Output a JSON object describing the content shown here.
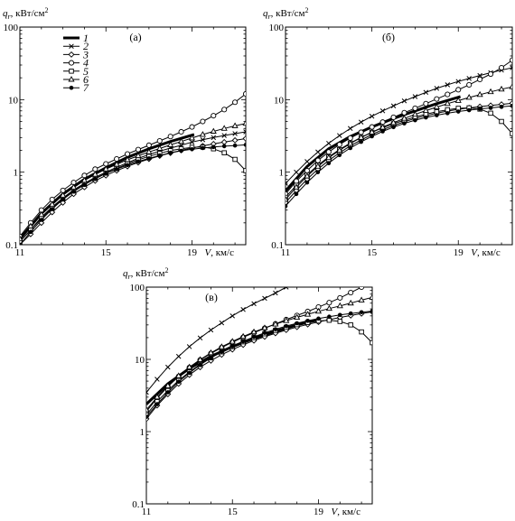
{
  "chart_data": [
    {
      "type": "line",
      "title": "(а)",
      "ylabel": "q_r, кВт/см²",
      "xlabel": "V, км/с",
      "xlim": [
        11,
        21.5
      ],
      "ylim": [
        0.1,
        100
      ],
      "yscale": "log",
      "x_ticks": [
        "11",
        "15",
        "19"
      ],
      "y_ticks": [
        "0.1",
        "1",
        "10",
        "100"
      ],
      "legend": {
        "placement": "top-left",
        "entries": [
          "1",
          "2",
          "3",
          "4",
          "5",
          "6",
          "7"
        ]
      },
      "series": [
        {
          "name": "1",
          "marker": "none",
          "width": 3,
          "x": [
            11,
            12,
            13,
            14,
            15,
            16,
            17,
            18,
            19.1
          ],
          "y": [
            0.12,
            0.27,
            0.5,
            0.8,
            1.15,
            1.6,
            2.1,
            2.65,
            3.3
          ]
        },
        {
          "name": "2",
          "marker": "x",
          "x": [
            11,
            11.5,
            12,
            12.5,
            13,
            13.5,
            14,
            14.5,
            15,
            15.5,
            16,
            16.5,
            17,
            17.5,
            18,
            18.5,
            19,
            19.5,
            20,
            20.5,
            21,
            21.5
          ],
          "y": [
            0.11,
            0.16,
            0.24,
            0.33,
            0.44,
            0.57,
            0.7,
            0.85,
            1.0,
            1.17,
            1.35,
            1.55,
            1.75,
            1.95,
            2.15,
            2.35,
            2.6,
            2.8,
            3.0,
            3.2,
            3.4,
            3.6
          ]
        },
        {
          "name": "3",
          "marker": "diamond",
          "x": [
            11,
            11.5,
            12,
            12.5,
            13,
            13.5,
            14,
            14.5,
            15,
            15.5,
            16,
            16.5,
            17,
            17.5,
            18,
            18.5,
            19,
            19.5,
            20,
            20.5,
            21,
            21.5
          ],
          "y": [
            0.1,
            0.14,
            0.2,
            0.28,
            0.38,
            0.5,
            0.62,
            0.76,
            0.9,
            1.05,
            1.2,
            1.36,
            1.52,
            1.68,
            1.84,
            2.0,
            2.15,
            2.3,
            2.45,
            2.6,
            2.75,
            2.9
          ]
        },
        {
          "name": "4",
          "marker": "circle",
          "x": [
            11,
            11.5,
            12,
            12.5,
            13,
            13.5,
            14,
            14.5,
            15,
            15.5,
            16,
            16.5,
            17,
            17.5,
            18,
            18.5,
            19,
            19.5,
            20,
            20.5,
            21,
            21.5
          ],
          "y": [
            0.13,
            0.2,
            0.3,
            0.42,
            0.56,
            0.72,
            0.9,
            1.1,
            1.3,
            1.52,
            1.78,
            2.05,
            2.35,
            2.7,
            3.1,
            3.6,
            4.2,
            5.0,
            6.0,
            7.3,
            9.2,
            12.0
          ]
        },
        {
          "name": "5",
          "marker": "square",
          "x": [
            11,
            11.5,
            12,
            12.5,
            13,
            13.5,
            14,
            14.5,
            15,
            15.5,
            16,
            16.5,
            17,
            17.5,
            18,
            18.5,
            19,
            19.5,
            20,
            20.5,
            21,
            21.5
          ],
          "y": [
            0.11,
            0.16,
            0.23,
            0.32,
            0.43,
            0.55,
            0.68,
            0.82,
            0.97,
            1.12,
            1.3,
            1.48,
            1.65,
            1.82,
            1.98,
            2.1,
            2.2,
            2.22,
            2.1,
            1.85,
            1.5,
            1.05
          ]
        },
        {
          "name": "6",
          "marker": "triangle",
          "x": [
            11,
            11.5,
            12,
            12.5,
            13,
            13.5,
            14,
            14.5,
            15,
            15.5,
            16,
            16.5,
            17,
            17.5,
            18,
            18.5,
            19,
            19.5,
            20,
            20.5,
            21,
            21.5
          ],
          "y": [
            0.12,
            0.18,
            0.26,
            0.36,
            0.48,
            0.62,
            0.77,
            0.93,
            1.1,
            1.28,
            1.48,
            1.68,
            1.9,
            2.12,
            2.38,
            2.65,
            2.95,
            3.3,
            3.65,
            4.0,
            4.35,
            4.7
          ]
        },
        {
          "name": "7",
          "marker": "dot",
          "x": [
            11,
            11.5,
            12,
            12.5,
            13,
            13.5,
            14,
            14.5,
            15,
            15.5,
            16,
            16.5,
            17,
            17.5,
            18,
            18.5,
            19,
            19.5,
            20,
            20.5,
            21,
            21.5
          ],
          "y": [
            0.1,
            0.15,
            0.22,
            0.31,
            0.42,
            0.54,
            0.67,
            0.81,
            0.96,
            1.1,
            1.25,
            1.4,
            1.55,
            1.7,
            1.85,
            1.97,
            2.07,
            2.15,
            2.22,
            2.28,
            2.33,
            2.38
          ]
        }
      ]
    },
    {
      "type": "line",
      "title": "(б)",
      "ylabel": "q_r, кВт/см²",
      "xlabel": "V, км/с",
      "xlim": [
        11,
        21.5
      ],
      "ylim": [
        0.1,
        100
      ],
      "yscale": "log",
      "x_ticks": [
        "11",
        "15",
        "19"
      ],
      "y_ticks": [
        "0.1",
        "1",
        "10",
        "100"
      ],
      "series": [
        {
          "name": "1",
          "marker": "none",
          "width": 3,
          "x": [
            11,
            12,
            13,
            14,
            15,
            16,
            17,
            18,
            19.1
          ],
          "y": [
            0.55,
            1.2,
            2.1,
            3.1,
            4.2,
            5.5,
            7.0,
            8.8,
            11.0
          ]
        },
        {
          "name": "2",
          "marker": "x",
          "x": [
            11,
            11.5,
            12,
            12.5,
            13,
            13.5,
            14,
            14.5,
            15,
            15.5,
            16,
            16.5,
            17,
            17.5,
            18,
            18.5,
            19,
            19.5,
            20,
            20.5,
            21,
            21.5
          ],
          "y": [
            0.7,
            1.0,
            1.4,
            1.9,
            2.5,
            3.2,
            4.0,
            4.9,
            5.9,
            7.0,
            8.2,
            9.6,
            11.0,
            12.6,
            14.3,
            16.0,
            17.8,
            19.6,
            21.5,
            23.5,
            25.5,
            27.5
          ]
        },
        {
          "name": "3",
          "marker": "diamond",
          "x": [
            11,
            11.5,
            12,
            12.5,
            13,
            13.5,
            14,
            14.5,
            15,
            15.5,
            16,
            16.5,
            17,
            17.5,
            18,
            18.5,
            19,
            19.5,
            20,
            20.5,
            21,
            21.5
          ],
          "y": [
            0.38,
            0.56,
            0.8,
            1.1,
            1.45,
            1.85,
            2.3,
            2.78,
            3.3,
            3.85,
            4.4,
            4.95,
            5.5,
            6.0,
            6.5,
            6.95,
            7.35,
            7.7,
            8.0,
            8.3,
            8.6,
            8.9
          ]
        },
        {
          "name": "4",
          "marker": "circle",
          "x": [
            11,
            11.5,
            12,
            12.5,
            13,
            13.5,
            14,
            14.5,
            15,
            15.5,
            16,
            16.5,
            17,
            17.5,
            18,
            18.5,
            19,
            19.5,
            20,
            20.5,
            21,
            21.5
          ],
          "y": [
            0.5,
            0.75,
            1.05,
            1.45,
            1.9,
            2.4,
            2.95,
            3.55,
            4.2,
            4.9,
            5.7,
            6.6,
            7.6,
            8.8,
            10.2,
            11.8,
            13.7,
            16.0,
            19.0,
            22.5,
            27.5,
            35.0
          ]
        },
        {
          "name": "5",
          "marker": "square",
          "x": [
            11,
            11.5,
            12,
            12.5,
            13,
            13.5,
            14,
            14.5,
            15,
            15.5,
            16,
            16.5,
            17,
            17.5,
            18,
            18.5,
            19,
            19.5,
            20,
            20.5,
            21,
            21.5
          ],
          "y": [
            0.45,
            0.66,
            0.92,
            1.25,
            1.62,
            2.05,
            2.52,
            3.02,
            3.55,
            4.1,
            4.65,
            5.2,
            5.75,
            6.3,
            6.8,
            7.25,
            7.6,
            7.7,
            7.4,
            6.5,
            5.0,
            3.4
          ]
        },
        {
          "name": "6",
          "marker": "triangle",
          "x": [
            11,
            11.5,
            12,
            12.5,
            13,
            13.5,
            14,
            14.5,
            15,
            15.5,
            16,
            16.5,
            17,
            17.5,
            18,
            18.5,
            19,
            19.5,
            20,
            20.5,
            21,
            21.5
          ],
          "y": [
            0.42,
            0.62,
            0.88,
            1.2,
            1.58,
            2.0,
            2.48,
            3.0,
            3.55,
            4.15,
            4.8,
            5.5,
            6.25,
            7.05,
            7.9,
            8.8,
            9.7,
            10.7,
            11.7,
            12.8,
            13.9,
            15.0
          ]
        },
        {
          "name": "7",
          "marker": "dot",
          "x": [
            11,
            11.5,
            12,
            12.5,
            13,
            13.5,
            14,
            14.5,
            15,
            15.5,
            16,
            16.5,
            17,
            17.5,
            18,
            18.5,
            19,
            19.5,
            20,
            20.5,
            21,
            21.5
          ],
          "y": [
            0.34,
            0.5,
            0.72,
            1.0,
            1.33,
            1.72,
            2.15,
            2.62,
            3.12,
            3.65,
            4.18,
            4.7,
            5.2,
            5.67,
            6.1,
            6.5,
            6.85,
            7.15,
            7.45,
            7.7,
            7.95,
            8.2
          ]
        }
      ]
    },
    {
      "type": "line",
      "title": "(в)",
      "ylabel": "q_r, кВт/см²",
      "xlabel": "V, км/с",
      "xlim": [
        11,
        21.5
      ],
      "ylim": [
        0.1,
        100
      ],
      "yscale": "log",
      "x_ticks": [
        "11",
        "15",
        "19"
      ],
      "y_ticks": [
        "0.1",
        "1",
        "10",
        "100"
      ],
      "series": [
        {
          "name": "1",
          "marker": "none",
          "width": 3,
          "x": [
            11,
            12,
            13,
            14,
            15,
            16,
            17,
            18,
            19.1
          ],
          "y": [
            2.4,
            4.6,
            7.5,
            11.0,
            15.0,
            19.5,
            24.5,
            30.0,
            36.0
          ]
        },
        {
          "name": "2",
          "marker": "x",
          "x": [
            11,
            11.5,
            12,
            12.5,
            13,
            13.5,
            14,
            14.5,
            15,
            15.5,
            16,
            16.5,
            17,
            17.5
          ],
          "y": [
            3.5,
            5.3,
            7.8,
            11.0,
            15.0,
            19.8,
            25.5,
            32.0,
            40.0,
            49.0,
            59.0,
            70.0,
            83.0,
            100.0
          ]
        },
        {
          "name": "3",
          "marker": "diamond",
          "x": [
            11,
            11.5,
            12,
            12.5,
            13,
            13.5,
            14,
            14.5,
            15,
            15.5,
            16,
            16.5,
            17,
            17.5,
            18,
            18.5,
            19,
            19.5,
            20,
            20.5,
            21,
            21.5
          ],
          "y": [
            1.5,
            2.3,
            3.3,
            4.6,
            6.1,
            7.8,
            9.6,
            11.6,
            13.7,
            15.9,
            18.2,
            20.6,
            23.0,
            25.5,
            28.0,
            30.5,
            33.0,
            35.5,
            38.0,
            40.5,
            43.0,
            45.5
          ]
        },
        {
          "name": "4",
          "marker": "circle",
          "x": [
            11,
            11.5,
            12,
            12.5,
            13,
            13.5,
            14,
            14.5,
            15,
            15.5,
            16,
            16.5,
            17,
            17.5,
            18,
            18.5,
            19,
            19.5,
            20,
            20.5,
            21
          ],
          "y": [
            1.9,
            2.9,
            4.2,
            5.8,
            7.7,
            9.8,
            12.1,
            14.6,
            17.3,
            20.2,
            23.4,
            27.0,
            31.0,
            35.5,
            40.5,
            46.0,
            53.0,
            61.0,
            71.0,
            84.0,
            100.0
          ]
        },
        {
          "name": "5",
          "marker": "square",
          "x": [
            11,
            11.5,
            12,
            12.5,
            13,
            13.5,
            14,
            14.5,
            15,
            15.5,
            16,
            16.5,
            17,
            17.5,
            18,
            18.5,
            19,
            19.5,
            20,
            20.5,
            21,
            21.5
          ],
          "y": [
            1.7,
            2.6,
            3.7,
            5.1,
            6.7,
            8.5,
            10.5,
            12.7,
            15.0,
            17.5,
            20.0,
            22.6,
            25.2,
            27.8,
            30.2,
            32.4,
            34.0,
            34.8,
            33.5,
            30.0,
            24.0,
            17.0
          ]
        },
        {
          "name": "6",
          "marker": "triangle",
          "x": [
            11,
            11.5,
            12,
            12.5,
            13,
            13.5,
            14,
            14.5,
            15,
            15.5,
            16,
            16.5,
            17,
            17.5,
            18,
            18.5,
            19,
            19.5,
            20,
            20.5,
            21,
            21.5
          ],
          "y": [
            2.0,
            3.0,
            4.3,
            5.9,
            7.8,
            9.9,
            12.3,
            14.9,
            17.7,
            20.7,
            23.9,
            27.2,
            30.7,
            34.3,
            38.1,
            42.0,
            46.2,
            50.5,
            55.0,
            60.0,
            66.0,
            72.0
          ]
        },
        {
          "name": "7",
          "marker": "dot",
          "x": [
            11,
            11.5,
            12,
            12.5,
            13,
            13.5,
            14,
            14.5,
            15,
            15.5,
            16,
            16.5,
            17,
            17.5,
            18,
            18.5,
            19,
            19.5,
            20,
            20.5,
            21,
            21.5
          ],
          "y": [
            1.6,
            2.4,
            3.5,
            4.9,
            6.5,
            8.4,
            10.5,
            12.8,
            15.2,
            17.8,
            20.5,
            23.3,
            26.1,
            28.9,
            31.6,
            34.2,
            36.7,
            39.0,
            41.2,
            43.2,
            45.0,
            46.5
          ]
        }
      ]
    }
  ]
}
